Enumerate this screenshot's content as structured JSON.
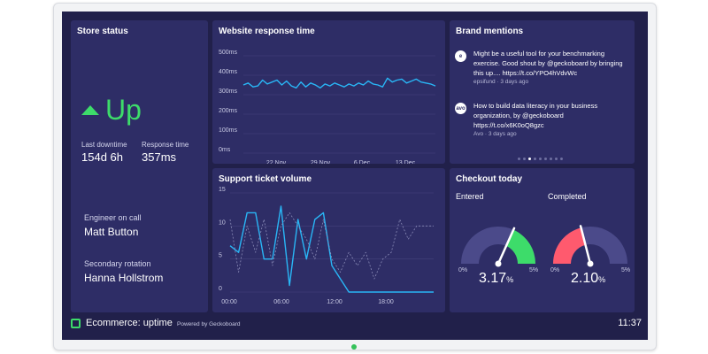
{
  "store_status": {
    "title": "Store status",
    "status": "Up",
    "last_downtime_label": "Last downtime",
    "last_downtime_value": "154d 6h",
    "response_time_label": "Response time",
    "response_time_value": "357ms",
    "engineer_label": "Engineer on call",
    "engineer_name": "Matt Button",
    "secondary_label": "Secondary rotation",
    "secondary_name": "Hanna Hollstrom",
    "status_color": "#3ddc6a"
  },
  "brand_mentions": {
    "title": "Brand mentions",
    "items": [
      {
        "logo": "e",
        "text": "Might be a useful tool for your benchmarking exercise. Good shout by @geckoboard by bringing this up.... https://t.co/YPO4hVdvWc",
        "meta": "epsifund · 3 days ago"
      },
      {
        "logo": "avo",
        "text": "How to build data literacy in your business organization, by @geckoboard https://t.co/x6K0oQ8gzc",
        "meta": "Avo · 3 days ago"
      }
    ],
    "pager": {
      "count": 9,
      "active_index": 2
    }
  },
  "checkout": {
    "title": "Checkout today",
    "gauges": [
      {
        "label": "Entered",
        "value_number": "3.17",
        "unit": "%",
        "min_label": "0%",
        "max_label": "5%",
        "value": 3.17,
        "max": 5,
        "color": "#3ddc6a"
      },
      {
        "label": "Completed",
        "value_number": "2.10",
        "unit": "%",
        "min_label": "0%",
        "max_label": "5%",
        "value": 2.1,
        "max": 5,
        "color": "#ff5a6e"
      }
    ]
  },
  "footer": {
    "title": "Ecommerce: uptime",
    "powered_by": "Powered by Geckoboard",
    "time": "11:37"
  },
  "chart_data": [
    {
      "type": "line",
      "title": "Website response time",
      "y_ticks": [
        "500ms",
        "400ms",
        "300ms",
        "200ms",
        "100ms",
        "0ms"
      ],
      "x_tick_labels": [
        "22 Nov",
        "29 Nov",
        "6 Dec",
        "13 Dec"
      ],
      "ylim": [
        0,
        500
      ],
      "series": [
        {
          "color": "#29b6f6",
          "values": [
            350,
            360,
            340,
            345,
            375,
            355,
            365,
            375,
            350,
            370,
            345,
            335,
            365,
            340,
            360,
            350,
            335,
            355,
            345,
            360,
            350,
            340,
            355,
            345,
            360,
            350,
            370,
            355,
            350,
            340,
            385,
            365,
            375,
            380,
            360,
            370,
            380,
            365,
            360,
            355,
            345
          ]
        }
      ]
    },
    {
      "type": "line",
      "title": "Support ticket volume",
      "y_ticks": [
        "15",
        "10",
        "5",
        "0"
      ],
      "x_tick_labels": [
        "00:00",
        "06:00",
        "12:00",
        "18:00"
      ],
      "ylim": [
        0,
        15
      ],
      "series": [
        {
          "style": "solid",
          "color": "#29b6f6",
          "values": [
            7,
            6,
            12,
            12,
            5,
            5,
            13,
            1,
            11,
            5,
            11,
            12,
            4,
            2,
            0,
            0,
            0,
            0,
            0,
            0,
            0,
            0,
            0,
            0,
            0
          ]
        },
        {
          "style": "dashed",
          "color": "#8b8cb8",
          "values": [
            11,
            3,
            10,
            6,
            11,
            4,
            10,
            12,
            10,
            8,
            5,
            11,
            5,
            3,
            6,
            4,
            6,
            2,
            5,
            6,
            11,
            8,
            10,
            10,
            10
          ]
        }
      ]
    }
  ]
}
